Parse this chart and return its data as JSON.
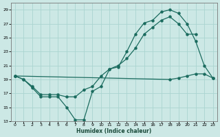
{
  "xlabel": "Humidex (Indice chaleur)",
  "ylabel": "",
  "xlim": [
    -0.5,
    23.5
  ],
  "ylim": [
    13,
    30
  ],
  "yticks": [
    13,
    15,
    17,
    19,
    21,
    23,
    25,
    27,
    29
  ],
  "xticks": [
    0,
    1,
    2,
    3,
    4,
    5,
    6,
    7,
    8,
    9,
    10,
    11,
    12,
    13,
    14,
    15,
    16,
    17,
    18,
    19,
    20,
    21,
    22,
    23
  ],
  "xtick_labels": [
    "0",
    "1",
    "2",
    "3",
    "4",
    "5",
    "6",
    "7",
    "8",
    "9",
    "10",
    "11",
    "12",
    "13",
    "14",
    "15",
    "16",
    "17",
    "18",
    "19",
    "20",
    "21",
    "22",
    "23"
  ],
  "bg_color": "#cce8e5",
  "grid_color": "#aad4d0",
  "line_color": "#1a6b5e",
  "line1_x": [
    0,
    1,
    2,
    3,
    4,
    5,
    6,
    7,
    8,
    9,
    10,
    11,
    12,
    13,
    14,
    15,
    16,
    17,
    18,
    19,
    20,
    21,
    22,
    23
  ],
  "line1_y": [
    19.5,
    19.0,
    17.8,
    16.5,
    16.5,
    16.5,
    15.0,
    13.2,
    13.2,
    17.3,
    18.0,
    20.5,
    20.8,
    23.0,
    25.5,
    27.1,
    27.5,
    28.7,
    29.0,
    28.5,
    27.0,
    24.5,
    21.0,
    19.2
  ],
  "line2_x": [
    0,
    1,
    2,
    3,
    4,
    5,
    6,
    7,
    8,
    9,
    10,
    11,
    12,
    13,
    14,
    15,
    16,
    17,
    18,
    19,
    20,
    21,
    22,
    23
  ],
  "line2_y": [
    19.5,
    19.0,
    18.0,
    16.8,
    16.8,
    16.8,
    16.5,
    16.5,
    17.5,
    18.0,
    19.5,
    20.5,
    21.0,
    22.0,
    23.5,
    25.5,
    26.5,
    27.5,
    28.0,
    27.0,
    25.5,
    25.5,
    null,
    null
  ],
  "line3_x": [
    0,
    18,
    19,
    20,
    21,
    22,
    23
  ],
  "line3_y": [
    19.5,
    19.0,
    19.2,
    19.5,
    19.8,
    19.8,
    19.2
  ]
}
